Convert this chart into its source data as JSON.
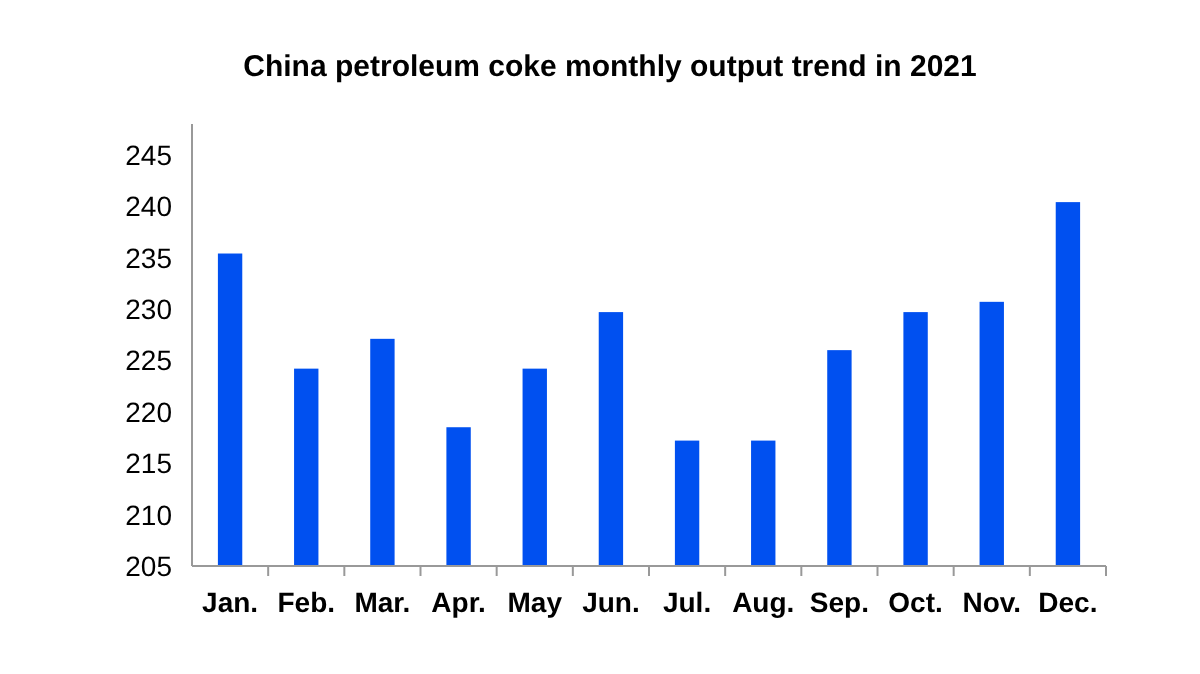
{
  "chart_data": {
    "type": "bar",
    "title": "China petroleum coke monthly output trend  in 2021",
    "categories": [
      "Jan.",
      "Feb.",
      "Mar.",
      "Apr.",
      "May",
      "Jun.",
      "Jul.",
      "Aug.",
      "Sep.",
      "Oct.",
      "Nov.",
      "Dec."
    ],
    "values": [
      235.4,
      224.2,
      227.1,
      218.5,
      224.2,
      229.7,
      217.2,
      217.2,
      226.0,
      229.7,
      230.7,
      240.4
    ],
    "color": "#0050f0",
    "ylim": [
      205,
      248
    ],
    "yticks": [
      205,
      210,
      215,
      220,
      225,
      230,
      235,
      240,
      245
    ],
    "grid": false
  }
}
